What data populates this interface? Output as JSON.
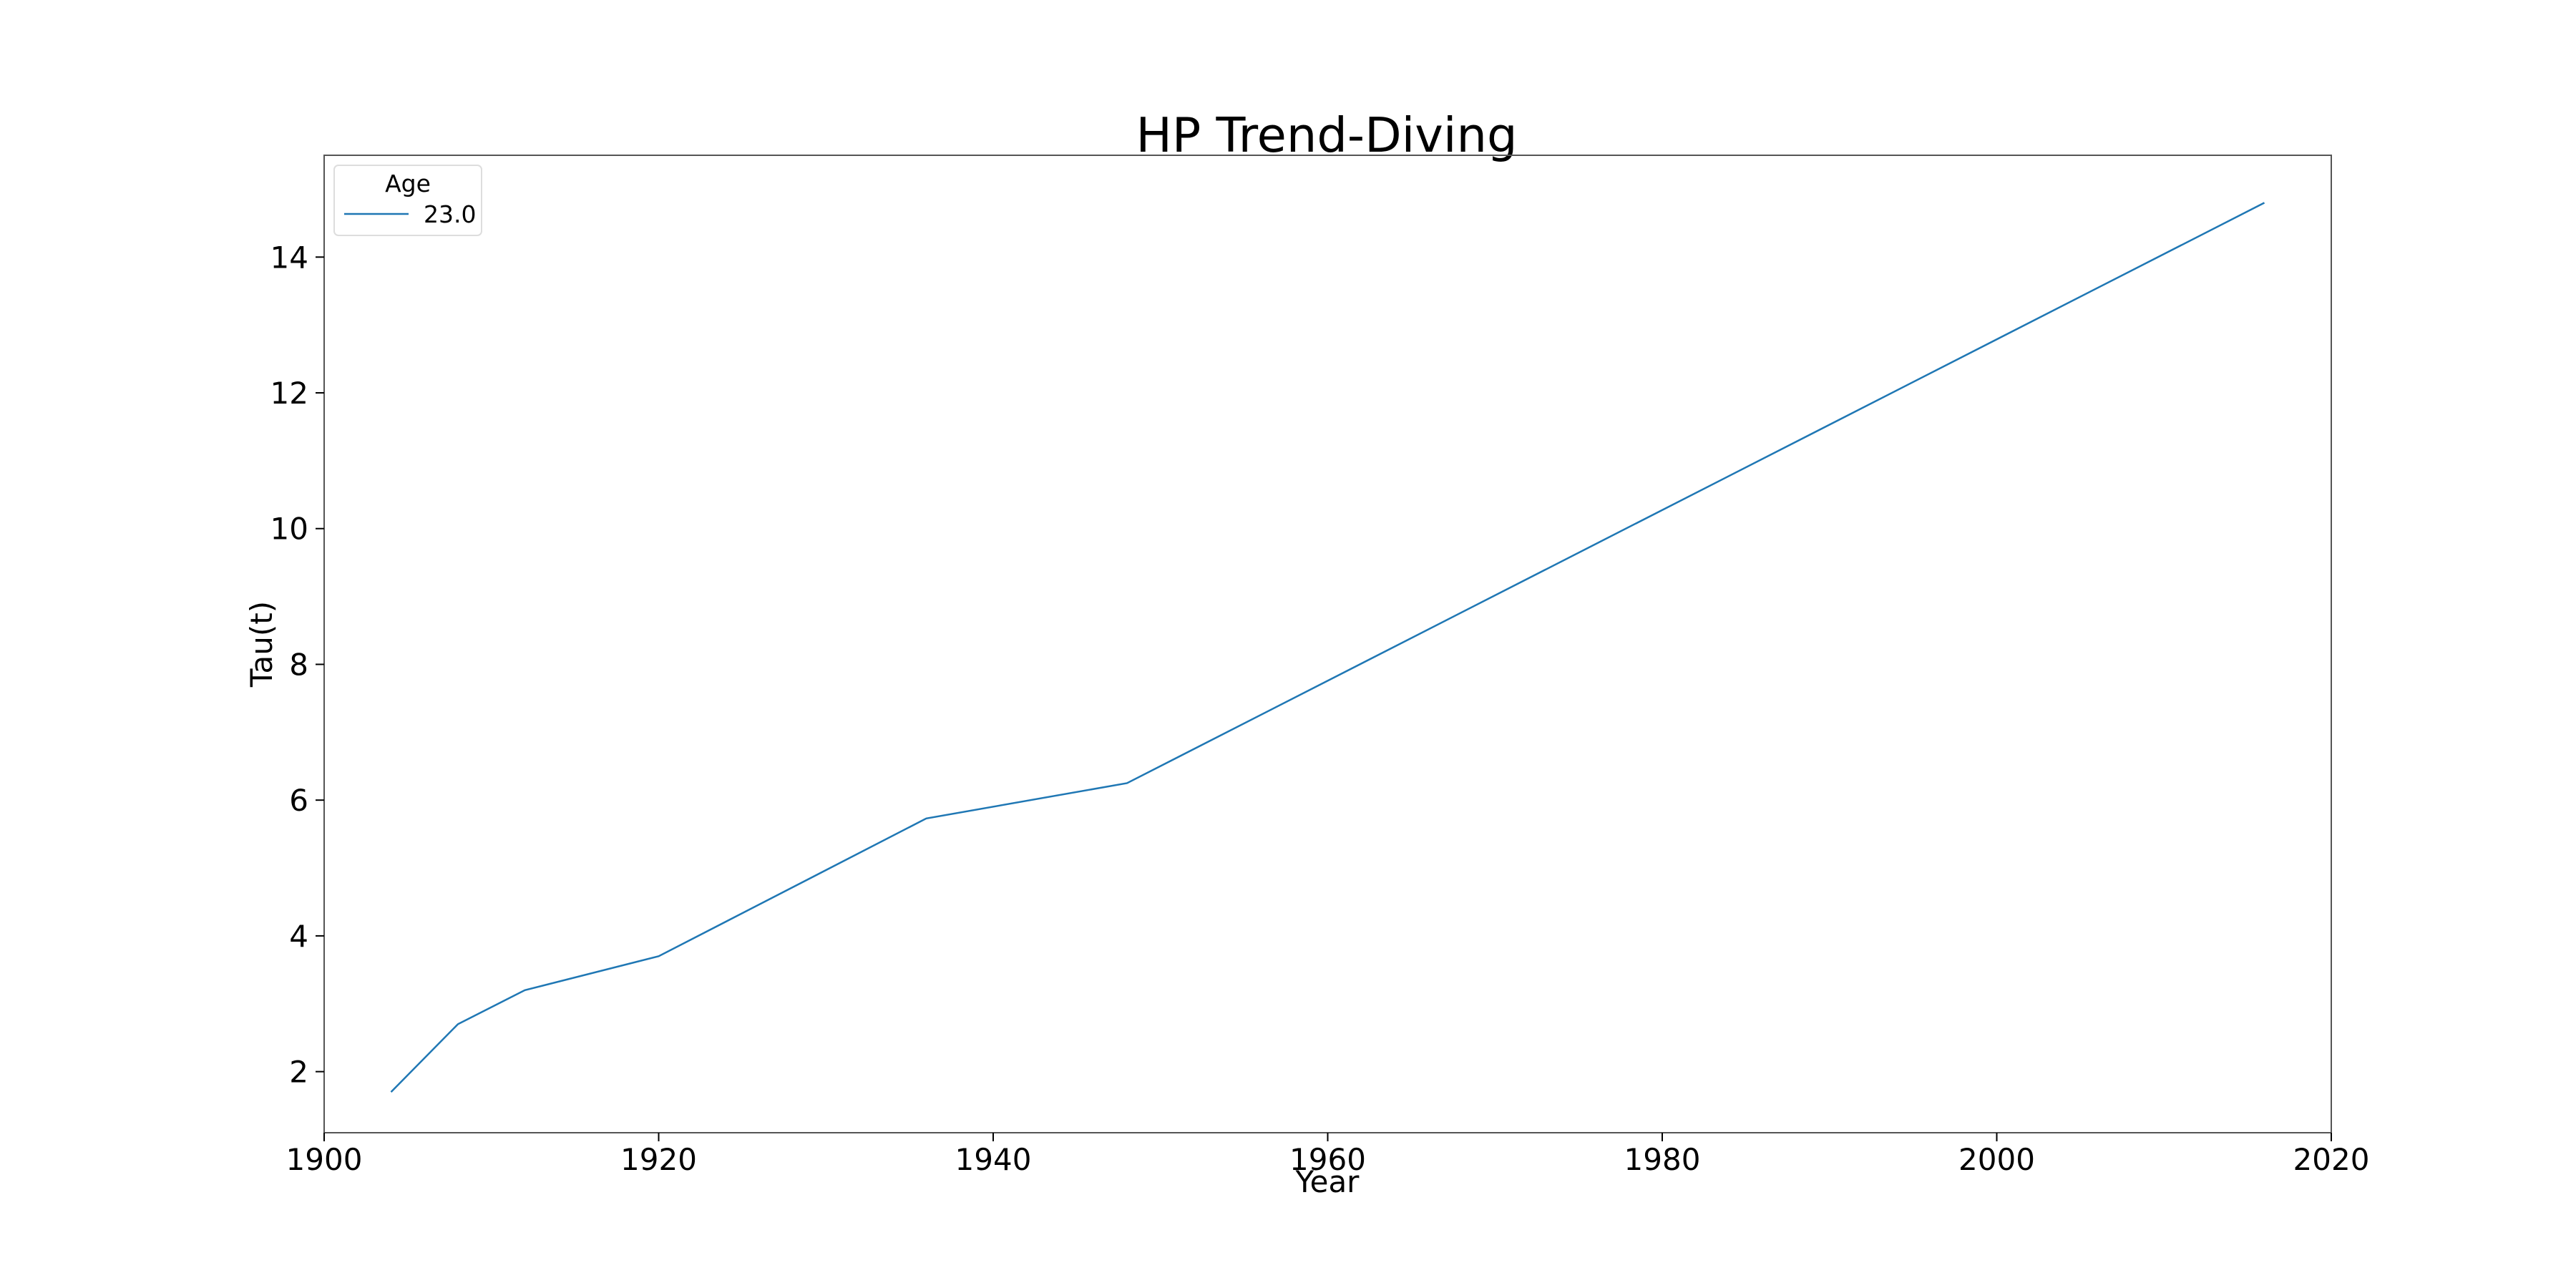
{
  "chart_data": {
    "type": "line",
    "title": "HP Trend-Diving",
    "xlabel": "Year",
    "ylabel": "Tau(t)",
    "xlim": [
      1900,
      2020
    ],
    "ylim": [
      1.1,
      15.5
    ],
    "xticks": [
      1900,
      1920,
      1940,
      1960,
      1980,
      2000,
      2020
    ],
    "yticks": [
      2,
      4,
      6,
      8,
      10,
      12,
      14
    ],
    "grid": false,
    "legend": {
      "title": "Age",
      "placement": "top-left"
    },
    "series": [
      {
        "name": "23.0",
        "color": "#1f77b4",
        "x": [
          1904,
          1908,
          1912,
          1920,
          1936,
          1948,
          2016
        ],
        "y": [
          1.7,
          2.7,
          3.2,
          3.7,
          5.73,
          6.25,
          14.8
        ]
      }
    ]
  }
}
